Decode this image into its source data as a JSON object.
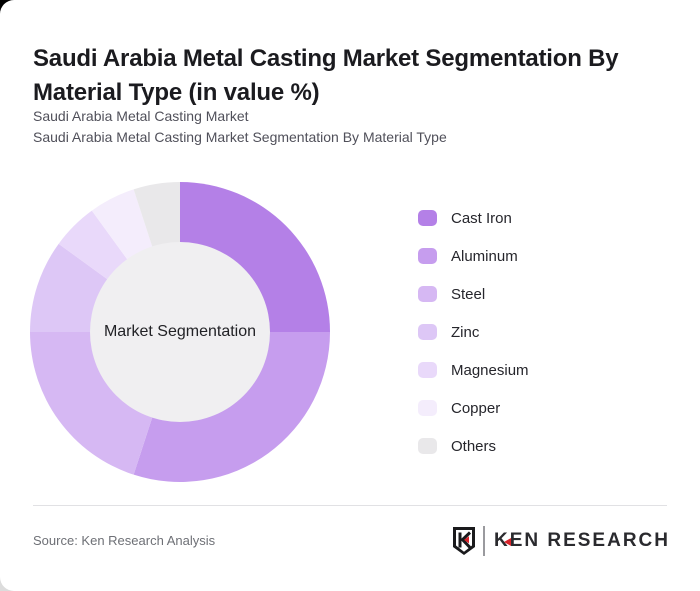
{
  "header": {
    "title": "Saudi Arabia Metal Casting Market Segmentation By Material Type (in value %)",
    "subtitle_line1": "Saudi Arabia Metal Casting Market",
    "subtitle_line2": "Saudi Arabia Metal Casting Market Segmentation By Material Type"
  },
  "chart_data": {
    "type": "pie",
    "donut": true,
    "title": "Saudi Arabia Metal Casting Market Segmentation By Material Type (in value %)",
    "center_label": "Market Segmentation",
    "start_angle_deg": 0,
    "direction": "clockwise",
    "legend_position": "right",
    "unit": "%",
    "categories": [
      "Cast Iron",
      "Aluminum",
      "Steel",
      "Zinc",
      "Magnesium",
      "Copper",
      "Others"
    ],
    "values": [
      25,
      30,
      20,
      10,
      5,
      5,
      5
    ],
    "colors": [
      "#b480e7",
      "#c69dee",
      "#d6b8f3",
      "#ddc7f6",
      "#e9d9fa",
      "#f4edfc",
      "#e9e8ea"
    ],
    "outer_radius_px": 150,
    "inner_radius_px": 90,
    "center_circle_color": "#f0eff1"
  },
  "legend": {
    "items": [
      {
        "label": "Cast Iron"
      },
      {
        "label": "Aluminum"
      },
      {
        "label": "Steel"
      },
      {
        "label": "Zinc"
      },
      {
        "label": "Magnesium"
      },
      {
        "label": "Copper"
      },
      {
        "label": "Others"
      }
    ]
  },
  "footer": {
    "source": "Source: Ken Research Analysis",
    "logo": {
      "shield_letter": "K",
      "brand_first_letter": "K",
      "brand_rest": "EN RESEARCH",
      "accent_color": "#d8232a",
      "ink_color": "#1a1a1c"
    }
  }
}
